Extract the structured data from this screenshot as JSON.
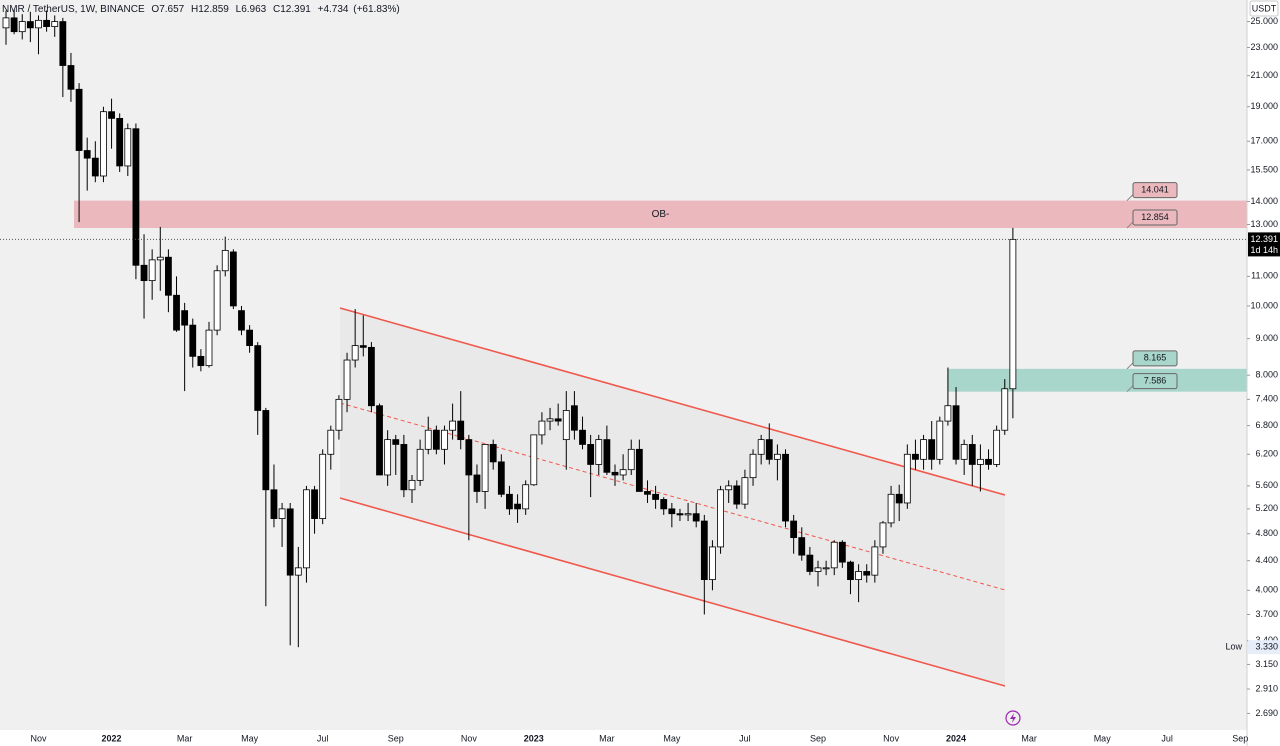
{
  "chart_data": {
    "type": "candlestick",
    "symbol": "NMR / TetherUS, 1W, BINANCE",
    "ohlc_header": [
      {
        "key": "O",
        "value": 7.657
      },
      {
        "key": "H",
        "value": 12.859
      },
      {
        "key": "L",
        "value": 6.963
      },
      {
        "key": "C",
        "value": 12.391
      }
    ],
    "change": [
      {
        "value": 4.734,
        "label": "+4.734"
      },
      {
        "value": 61.83,
        "label": "(+61.83%)"
      }
    ],
    "currency": "USDT",
    "log_scale": true,
    "ylim": [
      2.55,
      26.8
    ],
    "yticks": [
      {
        "value": 25,
        "label": "25.000"
      },
      {
        "value": 23,
        "label": "23.000"
      },
      {
        "value": 21,
        "label": "21.000"
      },
      {
        "value": 19,
        "label": "19.000"
      },
      {
        "value": 17,
        "label": "17.000"
      },
      {
        "value": 15.5,
        "label": "15.500"
      },
      {
        "value": 14,
        "label": "14.000"
      },
      {
        "value": 13,
        "label": "13.000"
      },
      {
        "value": 11,
        "label": "11.000"
      },
      {
        "value": 10,
        "label": "10.000"
      },
      {
        "value": 9,
        "label": "9.000"
      },
      {
        "value": 8,
        "label": "8.000"
      },
      {
        "value": 7.4,
        "label": "7.400"
      },
      {
        "value": 6.8,
        "label": "6.800"
      },
      {
        "value": 6.2,
        "label": "6.200"
      },
      {
        "value": 5.6,
        "label": "5.600"
      },
      {
        "value": 5.2,
        "label": "5.200"
      },
      {
        "value": 4.8,
        "label": "4.800"
      },
      {
        "value": 4.4,
        "label": "4.400"
      },
      {
        "value": 4,
        "label": "4.000"
      },
      {
        "value": 3.7,
        "label": "3.700"
      },
      {
        "value": 3.4,
        "label": "3.400"
      },
      {
        "value": 3.15,
        "label": "3.150"
      },
      {
        "value": 2.91,
        "label": "2.910"
      },
      {
        "value": 2.69,
        "label": "2.690"
      }
    ],
    "categories": [
      null,
      null,
      null,
      null,
      "Nov",
      null,
      null,
      null,
      null,
      null,
      null,
      null,
      null,
      "2022",
      null,
      null,
      null,
      null,
      null,
      null,
      null,
      null,
      "Mar",
      null,
      null,
      null,
      null,
      null,
      null,
      null,
      "May",
      null,
      null,
      null,
      null,
      null,
      null,
      null,
      null,
      "Jul",
      null,
      null,
      null,
      null,
      null,
      null,
      null,
      null,
      "Sep",
      null,
      null,
      null,
      null,
      null,
      null,
      null,
      null,
      "Nov",
      null,
      null,
      null,
      null,
      null,
      null,
      null,
      "2023",
      null,
      null,
      null,
      null,
      null,
      null,
      null,
      null,
      "Mar",
      null,
      null,
      null,
      null,
      null,
      null,
      null,
      "May",
      null,
      null,
      null,
      null,
      null,
      null,
      null,
      null,
      "Jul",
      null,
      null,
      null,
      null,
      null,
      null,
      null,
      null,
      "Sep",
      null,
      null,
      null,
      null,
      null,
      null,
      null,
      null,
      "Nov",
      null,
      null,
      null,
      null,
      null,
      null,
      null,
      "2024",
      null,
      null,
      null,
      null,
      null,
      null,
      null,
      null,
      "Mar",
      null,
      null,
      null,
      null,
      null,
      null,
      null,
      null,
      "May",
      null,
      null,
      null,
      null,
      null,
      null,
      null,
      "Jul",
      null,
      null,
      null,
      null,
      null,
      null,
      null,
      null,
      "Sep"
    ],
    "open": [
      24.5,
      25.3,
      24.2,
      25.0,
      24.5,
      25.1,
      24.6,
      25.0,
      21.7,
      20.1,
      16.5,
      16.1,
      15.2,
      18.7,
      18.3,
      15.7,
      17.7,
      11.4,
      10.85,
      11.6,
      11.7,
      10.35,
      9.85,
      9.4,
      8.5,
      8.25,
      9.25,
      11.2,
      11.9,
      9.85,
      9.25,
      8.8,
      7.14,
      5.53,
      5.04,
      5.2,
      4.2,
      4.3,
      5.53,
      5.04,
      6.2,
      6.7,
      7.4,
      8.4,
      8.8,
      8.75,
      7.25,
      5.8,
      6.5,
      6.4,
      5.53,
      5.7,
      6.3,
      6.7,
      6.3,
      6.7,
      6.9,
      6.5,
      5.8,
      5.5,
      6.4,
      6.05,
      5.45,
      5.28,
      5.2,
      5.62,
      6.6,
      6.9,
      6.95,
      6.5,
      7.25,
      6.7,
      6.4,
      6.0,
      6.5,
      5.85,
      5.8,
      5.9,
      6.3,
      5.5,
      5.45,
      5.36,
      5.2,
      5.12,
      5.1,
      5.12,
      5.0,
      4.14,
      4.6,
      5.53,
      5.6,
      5.28,
      5.75,
      6.2,
      6.5,
      6.1,
      6.2,
      5.0,
      4.74,
      4.48,
      4.25,
      4.3,
      4.3,
      4.67,
      4.38,
      4.14,
      4.25,
      4.2,
      4.6,
      4.97,
      5.45,
      5.3,
      6.2,
      6.1,
      6.5,
      6.1,
      6.9,
      7.25,
      6.1,
      6.4,
      6.0,
      6.1,
      6.0,
      6.7,
      7.657,
      null,
      null,
      null,
      null,
      null,
      null,
      null,
      null,
      null,
      null,
      null,
      null,
      null,
      null,
      null,
      null,
      null,
      null,
      null,
      null,
      null,
      null,
      null,
      null,
      null,
      null,
      null,
      null
    ],
    "high": [
      25.9,
      26.0,
      25.6,
      25.8,
      25.5,
      25.9,
      25.5,
      25.3,
      22.6,
      20.5,
      17.2,
      17.0,
      19.0,
      19.5,
      18.6,
      18.0,
      18.0,
      12.6,
      12.0,
      12.9,
      12.0,
      11.0,
      10.1,
      9.6,
      8.7,
      9.5,
      11.4,
      12.5,
      12.0,
      10.0,
      9.4,
      8.9,
      7.2,
      6.0,
      5.3,
      5.3,
      4.6,
      5.6,
      5.6,
      6.3,
      6.8,
      7.5,
      8.6,
      9.9,
      9.7,
      8.9,
      7.3,
      6.7,
      6.6,
      6.6,
      5.8,
      6.5,
      7.0,
      6.8,
      6.8,
      7.3,
      7.6,
      6.6,
      6.0,
      6.4,
      6.5,
      6.2,
      5.6,
      5.45,
      5.7,
      6.6,
      7.1,
      7.2,
      7.3,
      7.6,
      7.6,
      7.0,
      6.6,
      6.6,
      6.8,
      6.0,
      6.2,
      6.5,
      6.5,
      5.7,
      5.6,
      5.4,
      5.3,
      5.2,
      5.3,
      5.3,
      5.1,
      4.7,
      5.6,
      5.7,
      5.7,
      5.9,
      6.3,
      6.6,
      6.85,
      6.4,
      6.3,
      5.1,
      4.9,
      4.6,
      4.4,
      4.4,
      4.7,
      4.7,
      4.4,
      4.35,
      4.35,
      4.7,
      5.0,
      5.6,
      5.62,
      6.4,
      6.5,
      6.6,
      6.9,
      7.0,
      8.2,
      7.7,
      6.5,
      6.6,
      6.4,
      6.3,
      6.8,
      7.9,
      12.859,
      null,
      null,
      null,
      null,
      null,
      null,
      null,
      null,
      null,
      null,
      null,
      null,
      null,
      null,
      null,
      null,
      null,
      null,
      null,
      null,
      null,
      null,
      null,
      null,
      null,
      null,
      null,
      null
    ],
    "low": [
      23.2,
      24.0,
      23.6,
      23.4,
      22.5,
      24.2,
      23.8,
      19.6,
      19.3,
      13.1,
      14.5,
      14.9,
      14.9,
      16.6,
      15.4,
      15.2,
      10.9,
      9.6,
      10.2,
      10.5,
      9.8,
      9.2,
      7.6,
      8.2,
      8.1,
      8.2,
      9.1,
      11.0,
      9.9,
      9.1,
      8.6,
      6.6,
      3.8,
      4.9,
      4.6,
      3.35,
      3.33,
      4.1,
      4.8,
      4.95,
      5.9,
      6.5,
      7.1,
      8.2,
      8.5,
      7.1,
      5.8,
      5.6,
      5.8,
      5.4,
      5.3,
      5.6,
      6.2,
      6.2,
      6.0,
      6.5,
      6.3,
      4.7,
      5.3,
      5.2,
      5.9,
      5.4,
      5.1,
      4.97,
      5.1,
      5.6,
      6.4,
      6.7,
      6.8,
      5.9,
      6.5,
      6.3,
      5.4,
      5.8,
      5.8,
      5.6,
      5.7,
      5.8,
      5.5,
      5.3,
      5.2,
      5.1,
      4.9,
      5.0,
      5.0,
      4.9,
      3.7,
      4.0,
      4.5,
      5.3,
      5.2,
      5.2,
      5.6,
      6.0,
      6.0,
      5.7,
      4.9,
      4.5,
      4.4,
      4.2,
      4.05,
      4.2,
      4.2,
      4.3,
      3.95,
      3.85,
      4.1,
      4.1,
      4.5,
      4.9,
      5.0,
      5.2,
      5.9,
      5.9,
      5.9,
      6.0,
      6.8,
      6.0,
      5.8,
      5.6,
      5.5,
      5.9,
      5.95,
      6.6,
      6.963,
      null,
      null,
      null,
      null,
      null,
      null,
      null,
      null,
      null,
      null,
      null,
      null,
      null,
      null,
      null,
      null,
      null,
      null,
      null,
      null,
      null,
      null,
      null,
      null,
      null,
      null,
      null,
      null
    ],
    "close": [
      25.3,
      24.2,
      25.0,
      24.5,
      25.1,
      24.6,
      25.0,
      21.7,
      20.1,
      16.5,
      16.1,
      15.2,
      18.7,
      18.3,
      15.7,
      17.7,
      11.4,
      10.85,
      11.6,
      11.7,
      10.35,
      9.25,
      9.4,
      8.5,
      8.25,
      9.25,
      11.2,
      11.96,
      10.0,
      9.25,
      8.8,
      7.14,
      5.53,
      5.04,
      5.2,
      4.2,
      4.3,
      5.53,
      5.04,
      6.2,
      6.7,
      7.4,
      8.4,
      8.8,
      8.75,
      7.25,
      5.8,
      6.5,
      6.4,
      5.53,
      5.7,
      6.3,
      6.7,
      6.3,
      6.7,
      6.9,
      6.5,
      5.8,
      5.5,
      6.4,
      6.05,
      5.45,
      5.2,
      5.2,
      5.62,
      6.6,
      6.9,
      6.95,
      6.9,
      7.14,
      6.7,
      6.4,
      6.0,
      6.5,
      5.85,
      5.8,
      5.9,
      6.3,
      5.5,
      5.45,
      5.36,
      5.2,
      5.12,
      5.1,
      5.12,
      5.0,
      4.14,
      4.6,
      5.53,
      5.6,
      5.28,
      5.75,
      6.2,
      6.5,
      6.1,
      6.2,
      5.0,
      4.74,
      4.48,
      4.25,
      4.3,
      4.3,
      4.67,
      4.38,
      4.14,
      4.25,
      4.2,
      4.6,
      4.97,
      5.45,
      5.3,
      6.2,
      6.1,
      6.5,
      6.1,
      6.9,
      7.25,
      6.1,
      6.4,
      6.0,
      6.1,
      6.0,
      6.7,
      7.657,
      12.391,
      null,
      null,
      null,
      null,
      null,
      null,
      null,
      null,
      null,
      null,
      null,
      null,
      null,
      null,
      null,
      null,
      null,
      null,
      null,
      null,
      null,
      null,
      null,
      null,
      null,
      null,
      null,
      null
    ],
    "up_color": "#ffffff",
    "down_color": "#000000",
    "last_price": {
      "value": 12.391,
      "label": "12.391"
    },
    "countdown": "1d 14h",
    "low_marker": {
      "text": "Low",
      "value": {
        "value": 3.33,
        "label": "3.330"
      }
    },
    "zones": [
      {
        "label": "OB-",
        "from": 12.854,
        "to": 14.041,
        "color": "#ebb9bd"
      },
      {
        "from": 7.586,
        "to": 8.165,
        "color": "#a9d6cb"
      }
    ]
  }
}
